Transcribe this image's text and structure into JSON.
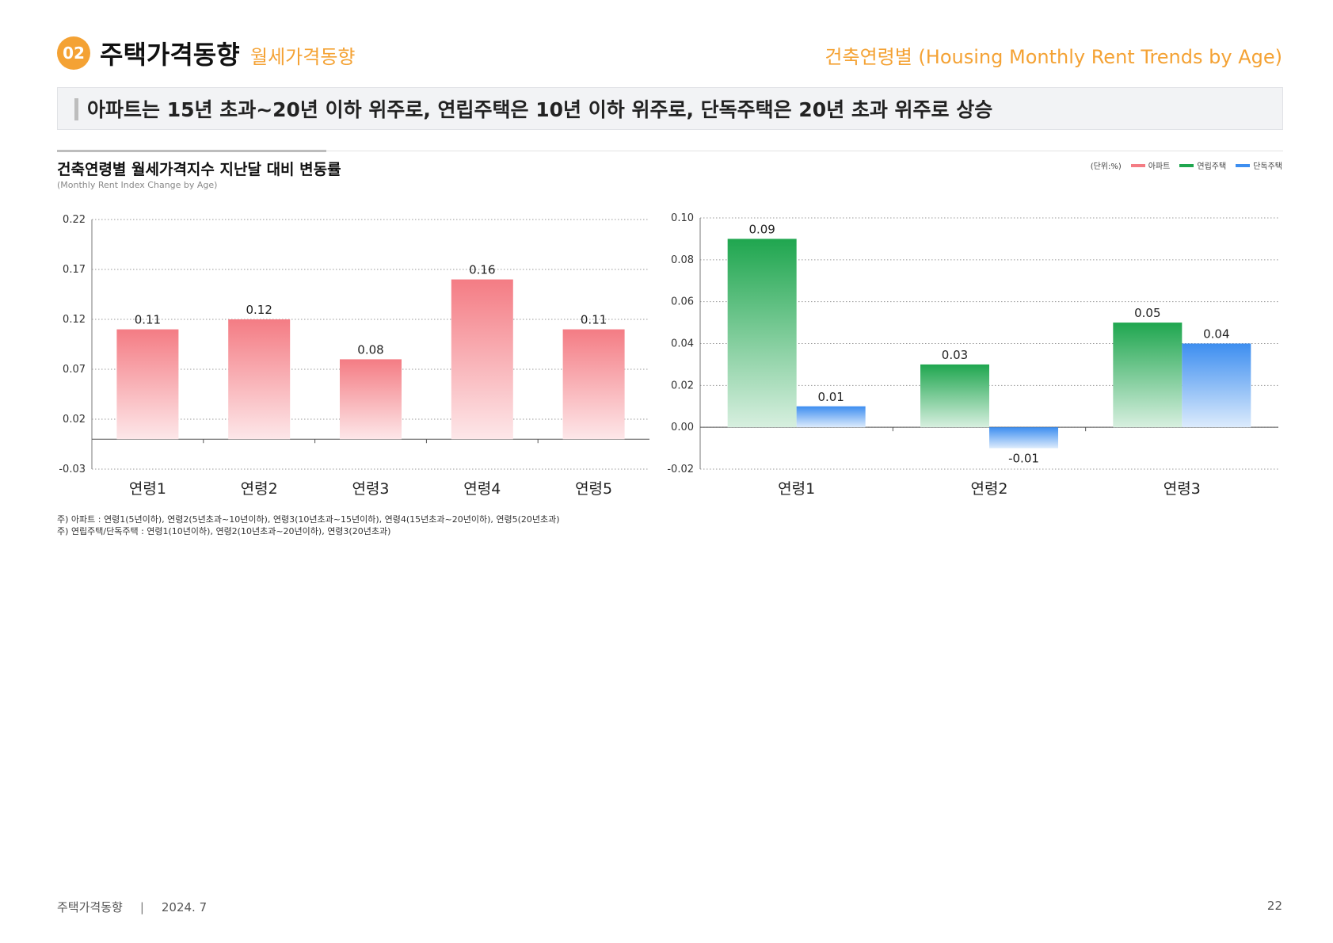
{
  "header": {
    "badge": "02",
    "title": "주택가격동향",
    "subtitle": "월세가격동향",
    "right_title": "건축연령별 (Housing Monthly Rent Trends by Age)"
  },
  "headline": "아파트는 15년 초과~20년 이하 위주로, 연립주택은 10년 이하 위주로, 단독주택은 20년 초과 위주로 상승",
  "chart_section": {
    "title": "건축연령별 월세가격지수 지난달 대비 변동률",
    "subtitle": "(Monthly Rent Index Change by Age)",
    "unit": "(단위:%)"
  },
  "legend": [
    {
      "label": "아파트",
      "color": "#F47C84"
    },
    {
      "label": "연립주택",
      "color": "#1FA64F"
    },
    {
      "label": "단독주택",
      "color": "#3D8EF0"
    }
  ],
  "chart_data": [
    {
      "type": "bar",
      "categories": [
        "연령1",
        "연령2",
        "연령3",
        "연령4",
        "연령5"
      ],
      "series": [
        {
          "name": "아파트",
          "values": [
            0.11,
            0.12,
            0.08,
            0.16,
            0.11
          ],
          "color": "#F47C84"
        }
      ],
      "yticks": [
        "0.22",
        "0.17",
        "0.12",
        "0.07",
        "0.02",
        "-0.03"
      ],
      "ylim": [
        -0.03,
        0.22
      ],
      "grid": true
    },
    {
      "type": "bar",
      "categories": [
        "연령1",
        "연령2",
        "연령3"
      ],
      "series": [
        {
          "name": "연립주택",
          "values": [
            0.09,
            0.03,
            0.05
          ],
          "color": "#1FA64F"
        },
        {
          "name": "단독주택",
          "values": [
            0.01,
            -0.01,
            0.04
          ],
          "color": "#3D8EF0"
        }
      ],
      "yticks": [
        "0.10",
        "0.08",
        "0.06",
        "0.04",
        "0.02",
        "0.00",
        "-0.02"
      ],
      "ylim": [
        -0.02,
        0.1
      ],
      "grid": true
    }
  ],
  "notes": [
    "주) 아파트 : 연령1(5년이하), 연령2(5년초과~10년이하), 연령3(10년초과~15년이하), 연령4(15년초과~20년이하), 연령5(20년초과)",
    "주) 연립주택/단독주택 : 연령1(10년이하), 연령2(10년초과~20년이하), 연령3(20년초과)"
  ],
  "footer": {
    "left": "주택가격동향",
    "date": "2024. 7",
    "page": "22"
  }
}
